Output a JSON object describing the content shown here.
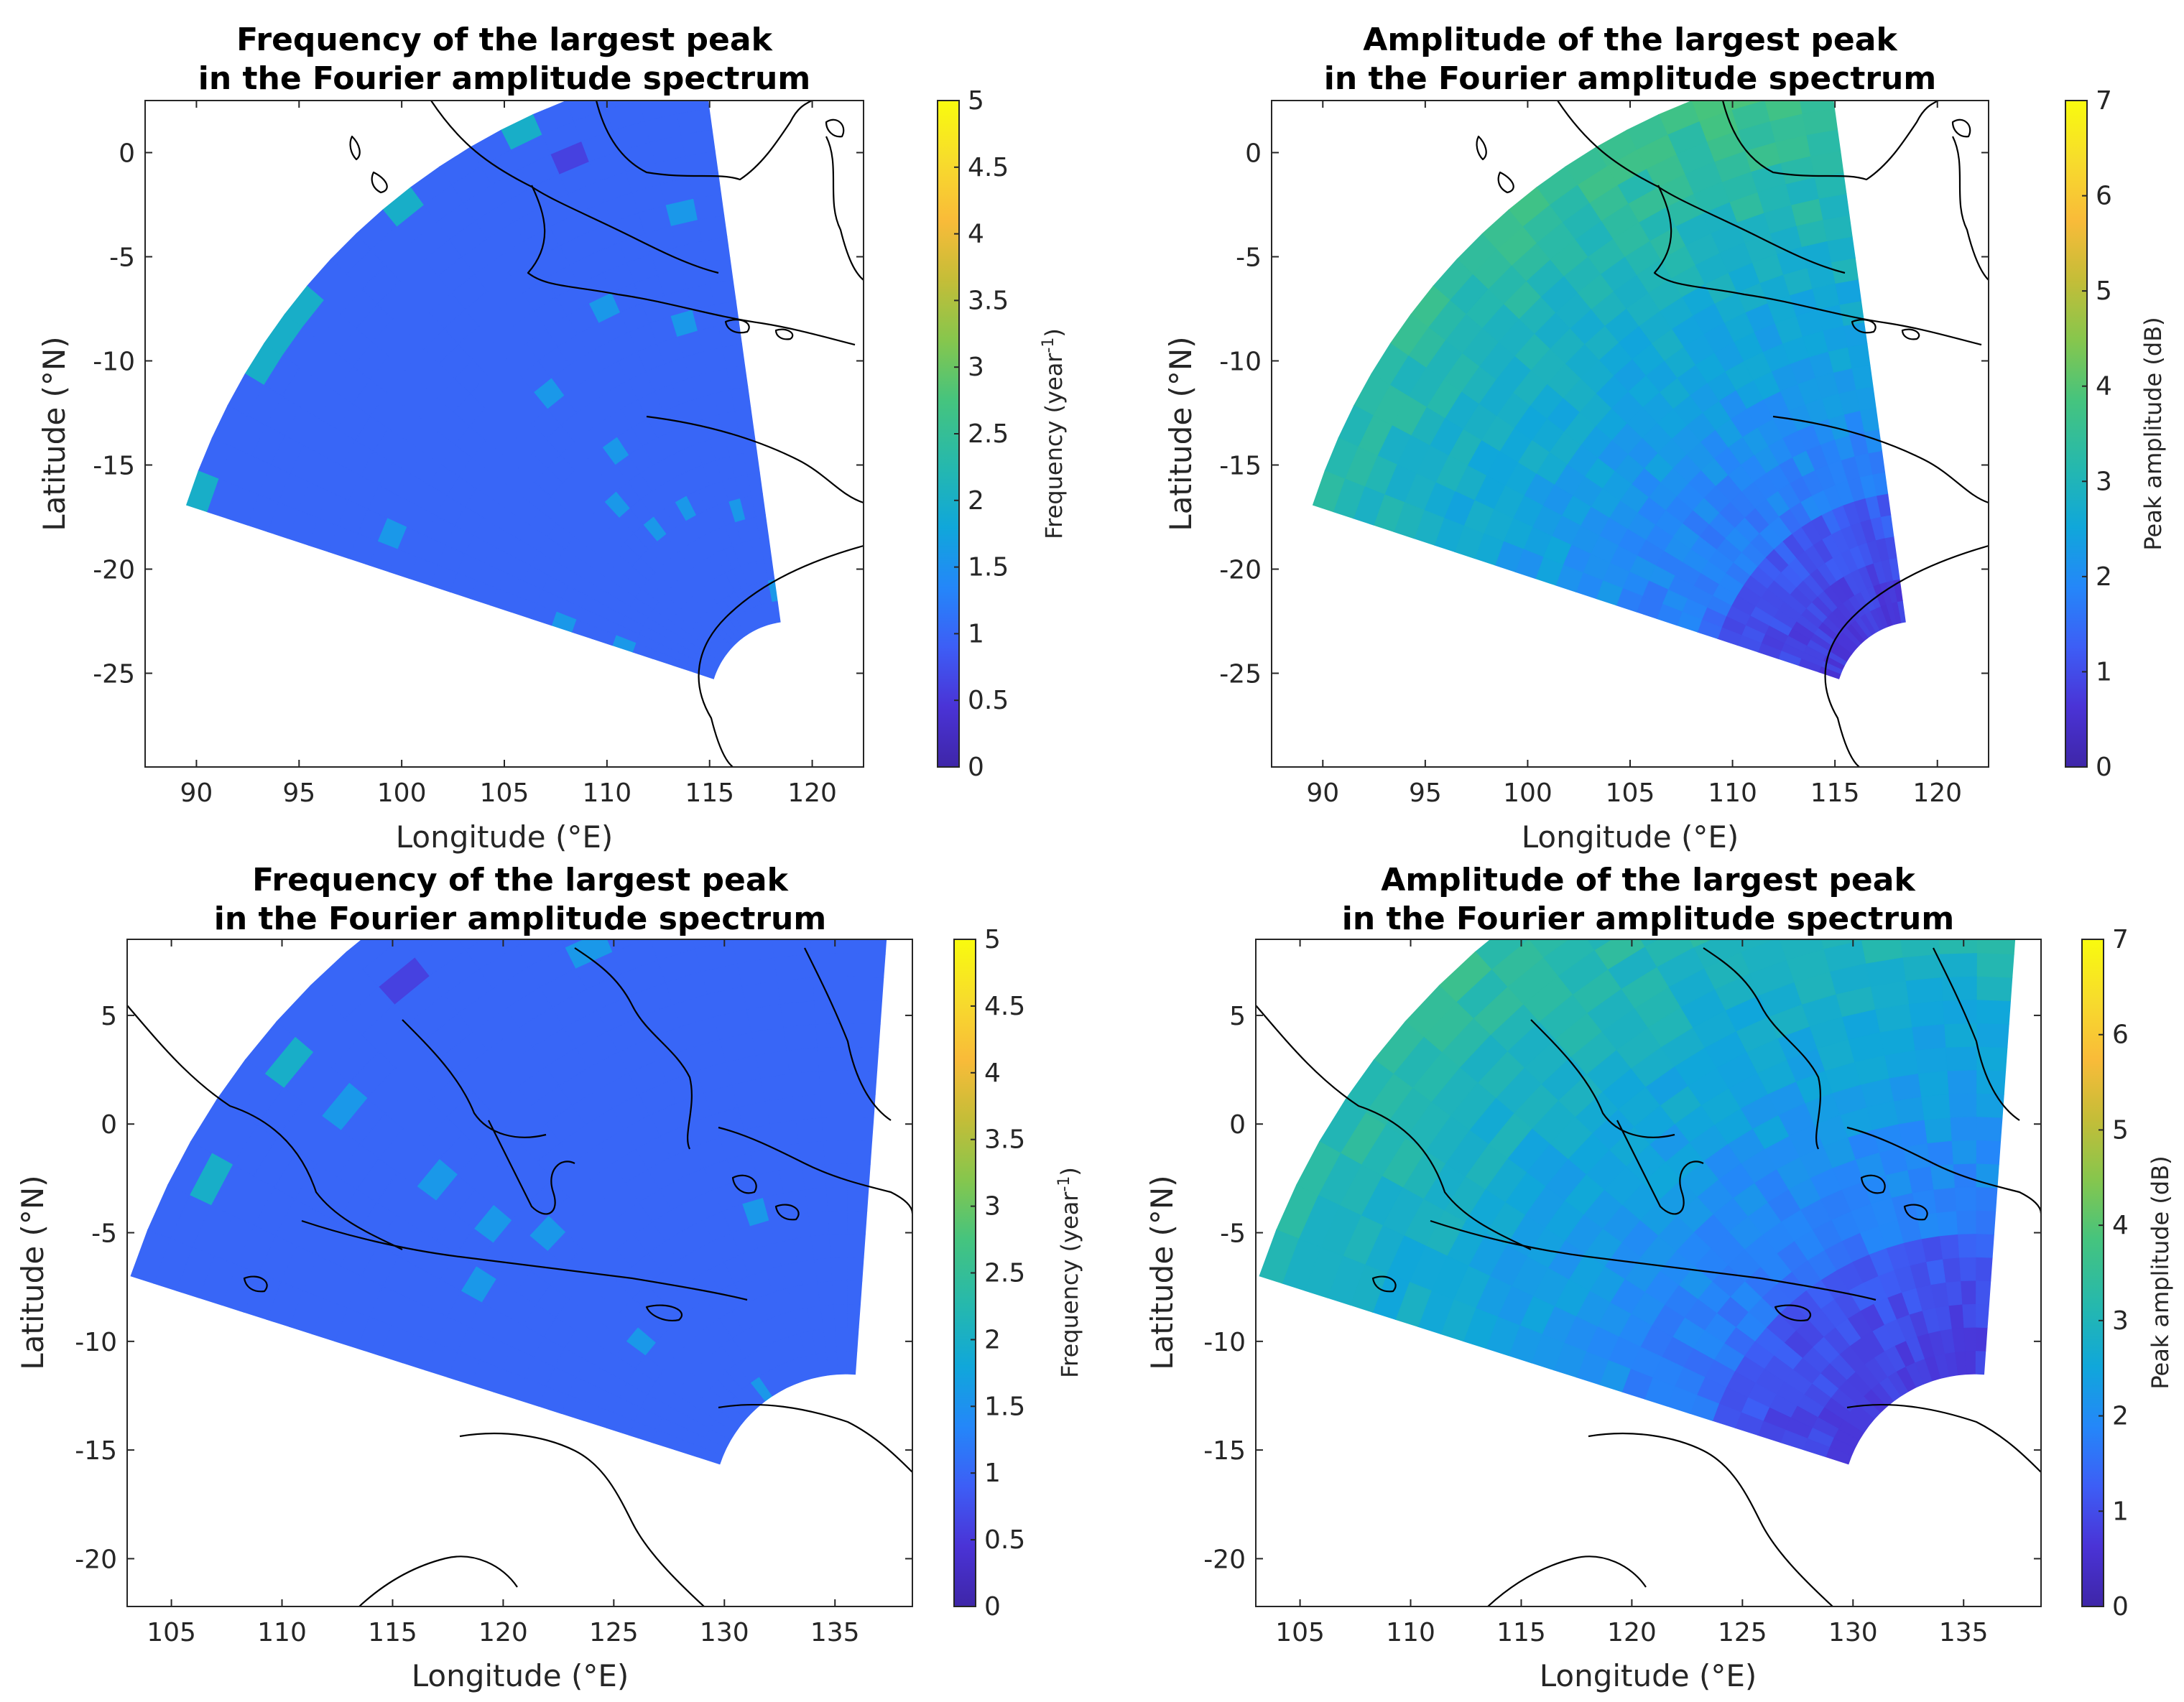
{
  "colors": {
    "freq_fill": "#2962f5",
    "panel_bg": "#ffffff",
    "coast": "#000000",
    "colormap": [
      "#3e26a8",
      "#4a33d6",
      "#3d5ef6",
      "#2487f9",
      "#10a7da",
      "#25b8ae",
      "#45c47e",
      "#86c64d",
      "#c4bd38",
      "#f9bb39",
      "#f7dc2c",
      "#f9fb0e"
    ]
  },
  "chart_data": [
    {
      "id": "a",
      "type": "heatmap",
      "title_line1": "Frequency of the largest peak",
      "title_line2": "in the Fourier amplitude spectrum",
      "xlabel": "Longitude (°E)",
      "ylabel": "Latitude (°N)",
      "xlim": [
        87.5,
        122.5
      ],
      "ylim": [
        -29.5,
        2.5
      ],
      "xticks": [
        "90",
        "95",
        "100",
        "105",
        "110",
        "115",
        "120"
      ],
      "xtick_values": [
        90,
        95,
        100,
        105,
        110,
        115,
        120
      ],
      "yticks": [
        "0",
        "-5",
        "-10",
        "-15",
        "-20",
        "-25"
      ],
      "ytick_values": [
        0,
        -5,
        -10,
        -15,
        -20,
        -25
      ],
      "colorbar_label": "Frequency (year",
      "colorbar_label_sup": "-1",
      "colorbar_label_end": ")",
      "colorbar_ticks": [
        "0",
        "0.5",
        "1",
        "1.5",
        "2",
        "2.5",
        "3",
        "3.5",
        "4",
        "4.5",
        "5"
      ],
      "colorbar_range": [
        0,
        5
      ],
      "dominant_value": 1.0,
      "center": [
        119.0,
        -26.5
      ],
      "radius_range_deg": [
        4.0,
        31.0
      ],
      "bearing_range_deg": [
        8,
        72
      ]
    },
    {
      "id": "b",
      "type": "heatmap",
      "title_line1": "Amplitude of the largest peak",
      "title_line2": "in the Fourier amplitude spectrum",
      "xlabel": "Longitude (°E)",
      "ylabel": "Latitude (°N)",
      "xlim": [
        87.5,
        122.5
      ],
      "ylim": [
        -29.5,
        2.5
      ],
      "xticks": [
        "90",
        "95",
        "100",
        "105",
        "110",
        "115",
        "120"
      ],
      "xtick_values": [
        90,
        95,
        100,
        105,
        110,
        115,
        120
      ],
      "yticks": [
        "0",
        "-5",
        "-10",
        "-15",
        "-20",
        "-25"
      ],
      "ytick_values": [
        0,
        -5,
        -10,
        -15,
        -20,
        -25
      ],
      "colorbar_label": "Peak amplitude (dB)",
      "colorbar_ticks": [
        "0",
        "1",
        "2",
        "3",
        "4",
        "5",
        "6",
        "7"
      ],
      "colorbar_range": [
        0,
        7
      ],
      "value_range": [
        0.6,
        4.3
      ],
      "center": [
        119.0,
        -26.5
      ],
      "radius_range_deg": [
        4.0,
        31.0
      ],
      "bearing_range_deg": [
        8,
        72
      ]
    },
    {
      "id": "c",
      "type": "heatmap",
      "title_line1": "Frequency of the largest peak",
      "title_line2": "in the Fourier amplitude spectrum",
      "xlabel": "Longitude (°E)",
      "ylabel": "Latitude (°N)",
      "xlim": [
        103.0,
        138.5
      ],
      "ylim": [
        -22.2,
        8.5
      ],
      "xticks": [
        "105",
        "110",
        "115",
        "120",
        "125",
        "130",
        "135"
      ],
      "xtick_values": [
        105,
        110,
        115,
        120,
        125,
        130,
        135
      ],
      "yticks": [
        "5",
        "0",
        "-5",
        "-10",
        "-15",
        "-20"
      ],
      "ytick_values": [
        5,
        0,
        -5,
        -10,
        -15,
        -20
      ],
      "colorbar_label": "Frequency (year",
      "colorbar_label_sup": "-1",
      "colorbar_label_end": ")",
      "colorbar_ticks": [
        "0",
        "0.5",
        "1",
        "1.5",
        "2",
        "2.5",
        "3",
        "3.5",
        "4",
        "4.5",
        "5"
      ],
      "colorbar_range": [
        0,
        5
      ],
      "dominant_value": 1.0,
      "center": [
        135.5,
        -17.5
      ],
      "radius_range_deg": [
        6.0,
        34.0
      ],
      "bearing_range_deg": [
        -4,
        72
      ]
    },
    {
      "id": "d",
      "type": "heatmap",
      "title_line1": "Amplitude of the largest peak",
      "title_line2": "in the Fourier amplitude spectrum",
      "xlabel": "Longitude (°E)",
      "ylabel": "Latitude (°N)",
      "xlim": [
        103.0,
        138.5
      ],
      "ylim": [
        -22.2,
        8.5
      ],
      "xticks": [
        "105",
        "110",
        "115",
        "120",
        "125",
        "130",
        "135"
      ],
      "xtick_values": [
        105,
        110,
        115,
        120,
        125,
        130,
        135
      ],
      "yticks": [
        "5",
        "0",
        "-5",
        "-10",
        "-15",
        "-20"
      ],
      "ytick_values": [
        5,
        0,
        -5,
        -10,
        -15,
        -20
      ],
      "colorbar_label": "Peak amplitude (dB)",
      "colorbar_ticks": [
        "0",
        "1",
        "2",
        "3",
        "4",
        "5",
        "6",
        "7"
      ],
      "colorbar_range": [
        0,
        7
      ],
      "value_range": [
        0.7,
        4.0
      ],
      "center": [
        135.5,
        -17.5
      ],
      "radius_range_deg": [
        6.0,
        34.0
      ],
      "bearing_range_deg": [
        -4,
        72
      ]
    }
  ]
}
